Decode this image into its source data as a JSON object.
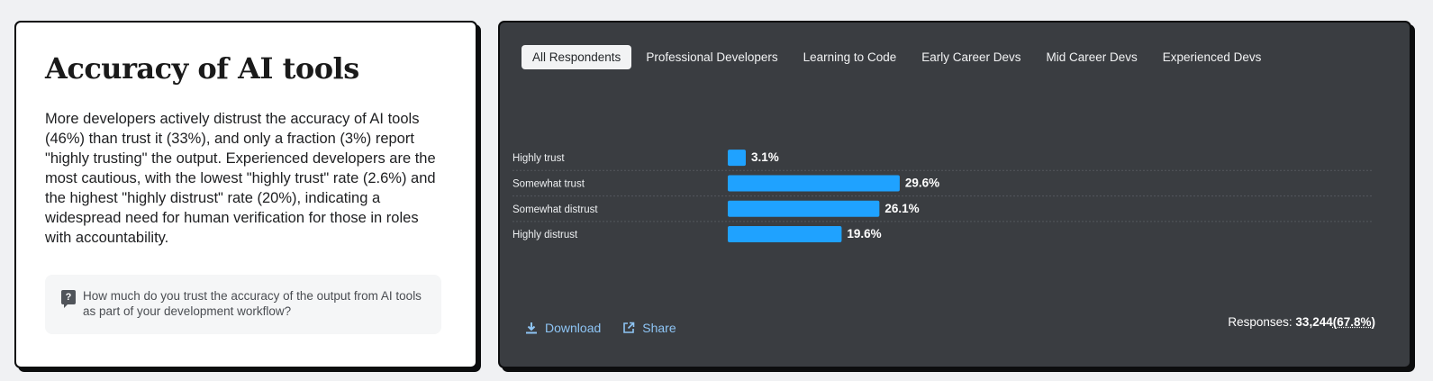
{
  "left": {
    "title": "Accuracy of AI tools",
    "description": "More developers actively distrust the accuracy of AI tools (46%) than trust it (33%), and only a fraction (3%) report \"highly trusting\" the output. Experienced developers are the most cautious, with the lowest \"highly trust\" rate (2.6%) and the highest \"highly distrust\" rate (20%), indicating a widespread need for human verification for those in roles with accountability.",
    "question": "How much do you trust the accuracy of the output from AI tools as part of your development workflow?",
    "question_icon": "question-mark-icon"
  },
  "tabs": [
    {
      "label": "All Respondents",
      "active": true
    },
    {
      "label": "Professional Developers",
      "active": false
    },
    {
      "label": "Learning to Code",
      "active": false
    },
    {
      "label": "Early Career Devs",
      "active": false
    },
    {
      "label": "Mid Career Devs",
      "active": false
    },
    {
      "label": "Experienced Devs",
      "active": false
    }
  ],
  "chart_data": {
    "type": "bar",
    "orientation": "horizontal",
    "categories": [
      "Highly trust",
      "Somewhat trust",
      "Somewhat distrust",
      "Highly distrust"
    ],
    "values": [
      3.1,
      29.6,
      26.1,
      19.6
    ],
    "value_labels": [
      "3.1%",
      "29.6%",
      "26.1%",
      "19.6%"
    ],
    "bar_color": "#1fa2ff",
    "title": "",
    "xlabel": "",
    "ylabel": "",
    "xlim": [
      0,
      100
    ],
    "grid": false
  },
  "footer": {
    "download_label": "Download",
    "share_label": "Share",
    "responses_label": "Responses: ",
    "responses_count": "33,244",
    "responses_pct": "(67.8%)"
  },
  "colors": {
    "panel_bg": "#3a3d41",
    "link": "#8ec5f5",
    "bar": "#1fa2ff"
  }
}
